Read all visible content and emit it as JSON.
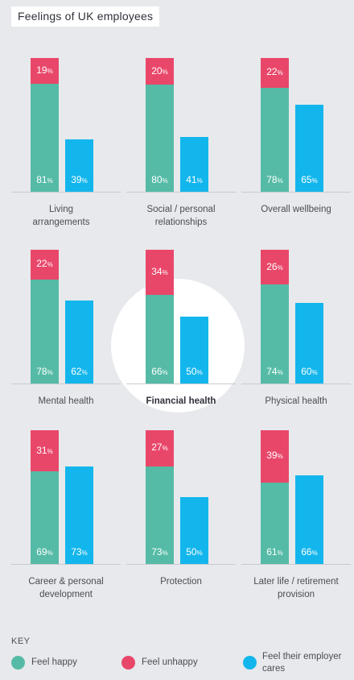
{
  "title": "Feelings of UK employees",
  "key": {
    "title": "KEY",
    "items": [
      {
        "label": "Feel happy",
        "color": "#55bba6"
      },
      {
        "label": "Feel unhappy",
        "color": "#e9476a"
      },
      {
        "label": "Feel their employer cares",
        "color": "#13b6ec"
      }
    ]
  },
  "chart_data": {
    "type": "bar",
    "title": "Feelings of UK employees",
    "series": [
      {
        "name": "Feel happy",
        "color": "#55bba6"
      },
      {
        "name": "Feel unhappy",
        "color": "#e9476a"
      },
      {
        "name": "Feel their employer cares",
        "color": "#13b6ec"
      }
    ],
    "unit": "%",
    "ylim": [
      0,
      100
    ],
    "grid": false,
    "legend": "bottom",
    "panels": [
      {
        "label": "Living arrangements",
        "happy": 81,
        "unhappy": 19,
        "cares": 39,
        "highlight": false
      },
      {
        "label": "Social / personal relationships",
        "happy": 80,
        "unhappy": 20,
        "cares": 41,
        "highlight": false
      },
      {
        "label": "Overall wellbeing",
        "happy": 78,
        "unhappy": 22,
        "cares": 65,
        "highlight": false
      },
      {
        "label": "Mental health",
        "happy": 78,
        "unhappy": 22,
        "cares": 62,
        "highlight": false
      },
      {
        "label": "Financial health",
        "happy": 66,
        "unhappy": 34,
        "cares": 50,
        "highlight": true
      },
      {
        "label": "Physical health",
        "happy": 74,
        "unhappy": 26,
        "cares": 60,
        "highlight": false
      },
      {
        "label": "Career & personal development",
        "happy": 69,
        "unhappy": 31,
        "cares": 73,
        "highlight": false
      },
      {
        "label": "Protection",
        "happy": 73,
        "unhappy": 27,
        "cares": 50,
        "highlight": false
      },
      {
        "label": "Later life / retirement provision",
        "happy": 61,
        "unhappy": 39,
        "cares": 66,
        "highlight": false
      }
    ]
  }
}
